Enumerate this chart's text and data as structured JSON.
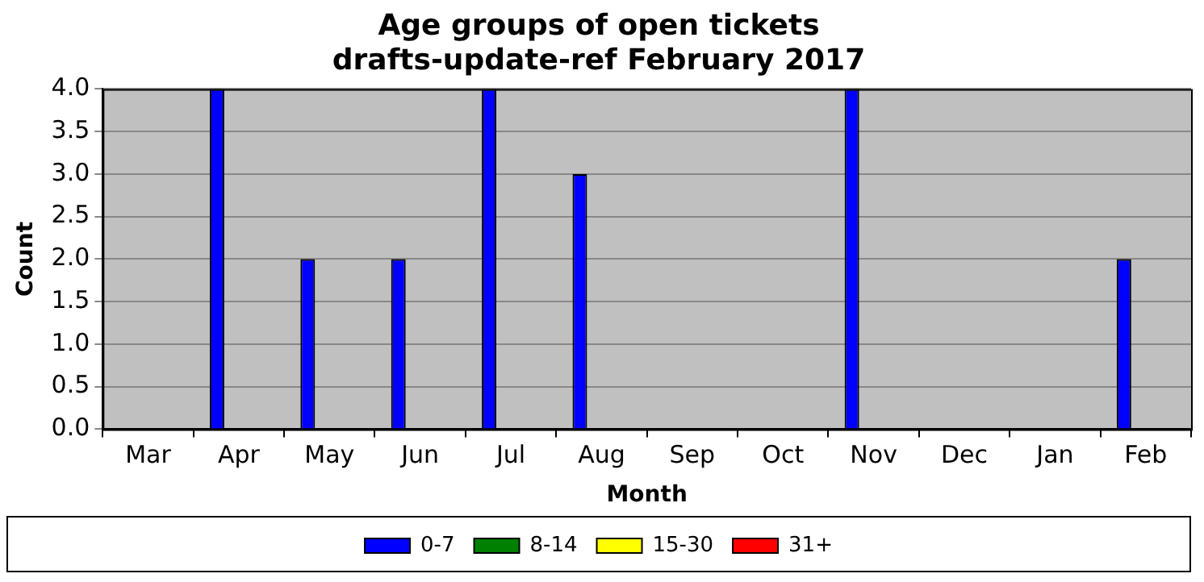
{
  "chart_data": {
    "type": "bar",
    "title": [
      "Age groups of open tickets",
      "drafts-update-ref February 2017"
    ],
    "xlabel": "Month",
    "ylabel": "Count",
    "categories": [
      "Mar",
      "Apr",
      "May",
      "Jun",
      "Jul",
      "Aug",
      "Sep",
      "Oct",
      "Nov",
      "Dec",
      "Jan",
      "Feb"
    ],
    "series": [
      {
        "name": "0-7",
        "color": "#0000ff",
        "values": [
          0,
          4,
          2,
          2,
          4,
          3,
          0,
          0,
          4,
          0,
          0,
          2
        ]
      },
      {
        "name": "8-14",
        "color": "#008000",
        "values": [
          0,
          0,
          0,
          0,
          0,
          0,
          0,
          0,
          0,
          0,
          0,
          0
        ]
      },
      {
        "name": "15-30",
        "color": "#ffff00",
        "values": [
          0,
          0,
          0,
          0,
          0,
          0,
          0,
          0,
          0,
          0,
          0,
          0
        ]
      },
      {
        "name": "31+",
        "color": "#ff0000",
        "values": [
          0,
          0,
          0,
          0,
          0,
          0,
          0,
          0,
          0,
          0,
          0,
          0
        ]
      }
    ],
    "ylim": [
      0,
      4
    ],
    "yticks": [
      {
        "value": 0,
        "label": "0.0"
      },
      {
        "value": 0.5,
        "label": "0.5"
      },
      {
        "value": 1,
        "label": "1.0"
      },
      {
        "value": 1.5,
        "label": "1.5"
      },
      {
        "value": 2,
        "label": "2.0"
      },
      {
        "value": 2.5,
        "label": "2.5"
      },
      {
        "value": 3,
        "label": "3.0"
      },
      {
        "value": 3.5,
        "label": "3.5"
      },
      {
        "value": 4,
        "label": "4.0"
      }
    ],
    "grid": "y",
    "legend": "bottom"
  }
}
